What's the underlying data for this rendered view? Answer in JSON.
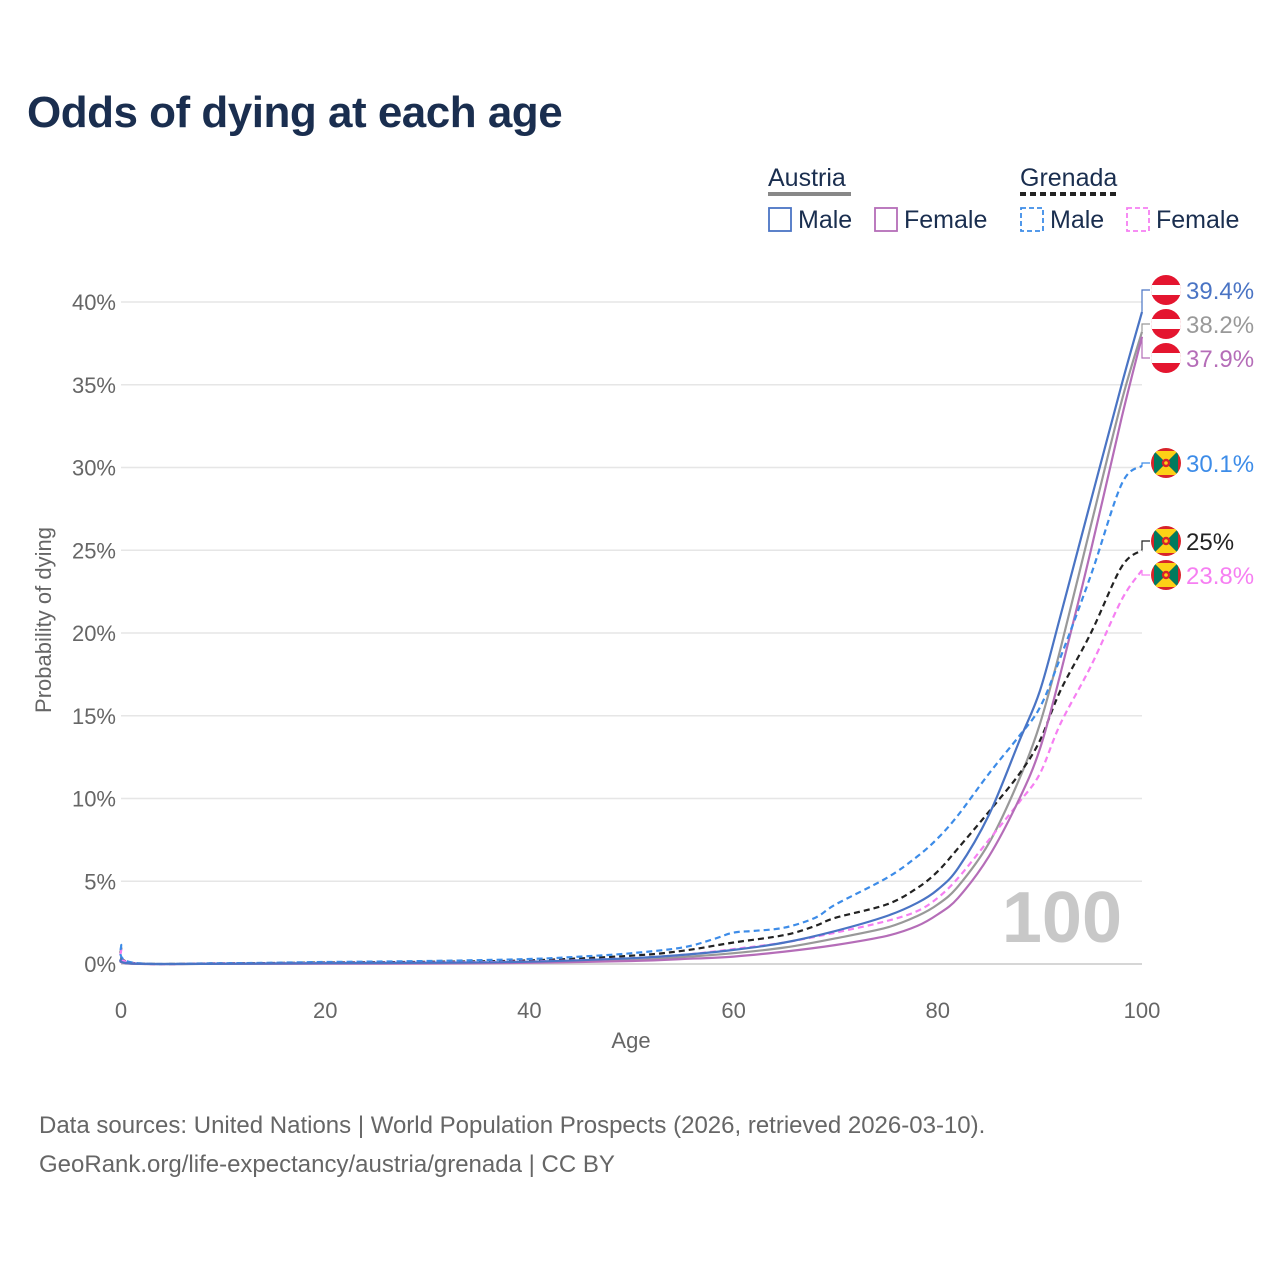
{
  "title": "Odds of dying at each age",
  "legend": {
    "groups": [
      {
        "country": "Austria",
        "items": [
          {
            "label": "Male",
            "color": "#4a74c4",
            "dashed": false
          },
          {
            "label": "Female",
            "color": "#b56db8",
            "dashed": false
          }
        ]
      },
      {
        "country": "Grenada",
        "items": [
          {
            "label": "Male",
            "color": "#3d8ce8",
            "dashed": true
          },
          {
            "label": "Female",
            "color": "#f67ff2",
            "dashed": true
          }
        ]
      }
    ]
  },
  "watermark": "100",
  "sources": {
    "line1": "Data sources: United Nations | World Population Prospects (2026, retrieved 2026-03-10).",
    "line2": "GeoRank.org/life-expectancy/austria/grenada | CC BY"
  },
  "chart_data": {
    "type": "line",
    "title": "Odds of dying at each age",
    "xlabel": "Age",
    "ylabel": "Probability of dying",
    "xlim": [
      0,
      100
    ],
    "ylim": [
      0,
      40
    ],
    "xticks": [
      0,
      20,
      40,
      60,
      80,
      100
    ],
    "yticks": [
      0,
      5,
      10,
      15,
      20,
      25,
      30,
      35,
      40
    ],
    "ytick_labels": [
      "0%",
      "5%",
      "10%",
      "15%",
      "20%",
      "25%",
      "30%",
      "35%",
      "40%"
    ],
    "grid": true,
    "series": [
      {
        "name": "Austria Male",
        "color": "#4a74c4",
        "dashed": false,
        "flag": "austria",
        "end_label": "39.4%",
        "points": [
          [
            0,
            0.35
          ],
          [
            1,
            0.03
          ],
          [
            10,
            0.01
          ],
          [
            20,
            0.05
          ],
          [
            30,
            0.07
          ],
          [
            40,
            0.14
          ],
          [
            50,
            0.35
          ],
          [
            55,
            0.55
          ],
          [
            60,
            0.85
          ],
          [
            65,
            1.3
          ],
          [
            70,
            2.0
          ],
          [
            75,
            2.9
          ],
          [
            78,
            3.7
          ],
          [
            80,
            4.5
          ],
          [
            82,
            5.8
          ],
          [
            85,
            9.0
          ],
          [
            88,
            13.5
          ],
          [
            90,
            16.5
          ],
          [
            92,
            21.0
          ],
          [
            95,
            28.0
          ],
          [
            98,
            35.0
          ],
          [
            100,
            39.4
          ]
        ]
      },
      {
        "name": "Austria Female",
        "color": "#b56db8",
        "dashed": false,
        "flag": "austria",
        "end_label": "37.9%",
        "points": [
          [
            0,
            0.3
          ],
          [
            1,
            0.02
          ],
          [
            10,
            0.01
          ],
          [
            20,
            0.02
          ],
          [
            30,
            0.03
          ],
          [
            40,
            0.07
          ],
          [
            50,
            0.18
          ],
          [
            55,
            0.3
          ],
          [
            60,
            0.45
          ],
          [
            65,
            0.75
          ],
          [
            70,
            1.15
          ],
          [
            75,
            1.7
          ],
          [
            78,
            2.3
          ],
          [
            80,
            3.0
          ],
          [
            82,
            4.0
          ],
          [
            85,
            6.5
          ],
          [
            88,
            10.0
          ],
          [
            90,
            13.0
          ],
          [
            92,
            17.5
          ],
          [
            95,
            25.0
          ],
          [
            98,
            33.0
          ],
          [
            100,
            37.9
          ]
        ]
      },
      {
        "name": "Austria Total",
        "color": "#999999",
        "dashed": false,
        "flag": "austria",
        "end_label": "38.2%",
        "points": [
          [
            0,
            0.32
          ],
          [
            1,
            0.025
          ],
          [
            10,
            0.01
          ],
          [
            20,
            0.035
          ],
          [
            30,
            0.05
          ],
          [
            40,
            0.1
          ],
          [
            50,
            0.26
          ],
          [
            55,
            0.42
          ],
          [
            60,
            0.65
          ],
          [
            65,
            1.0
          ],
          [
            70,
            1.55
          ],
          [
            75,
            2.2
          ],
          [
            78,
            2.9
          ],
          [
            80,
            3.6
          ],
          [
            82,
            4.7
          ],
          [
            85,
            7.3
          ],
          [
            88,
            11.2
          ],
          [
            90,
            14.5
          ],
          [
            92,
            19.0
          ],
          [
            95,
            26.5
          ],
          [
            98,
            34.0
          ],
          [
            100,
            38.2
          ]
        ]
      },
      {
        "name": "Grenada Male",
        "color": "#3d8ce8",
        "dashed": true,
        "flag": "grenada",
        "end_label": "30.1%",
        "points": [
          [
            0,
            1.2
          ],
          [
            1,
            0.1
          ],
          [
            10,
            0.05
          ],
          [
            20,
            0.12
          ],
          [
            30,
            0.18
          ],
          [
            40,
            0.3
          ],
          [
            45,
            0.45
          ],
          [
            50,
            0.65
          ],
          [
            55,
            1.0
          ],
          [
            58,
            1.5
          ],
          [
            60,
            1.9
          ],
          [
            62,
            2.0
          ],
          [
            65,
            2.2
          ],
          [
            68,
            2.8
          ],
          [
            70,
            3.6
          ],
          [
            75,
            5.2
          ],
          [
            78,
            6.5
          ],
          [
            80,
            7.6
          ],
          [
            82,
            9.0
          ],
          [
            85,
            11.5
          ],
          [
            88,
            13.8
          ],
          [
            90,
            15.5
          ],
          [
            92,
            18.5
          ],
          [
            95,
            23.5
          ],
          [
            98,
            29.0
          ],
          [
            100,
            30.1
          ]
        ]
      },
      {
        "name": "Grenada Total",
        "color": "#222222",
        "dashed": true,
        "flag": "grenada",
        "end_label": "25%",
        "points": [
          [
            0,
            1.0
          ],
          [
            1,
            0.08
          ],
          [
            10,
            0.04
          ],
          [
            20,
            0.09
          ],
          [
            30,
            0.13
          ],
          [
            40,
            0.22
          ],
          [
            50,
            0.5
          ],
          [
            55,
            0.8
          ],
          [
            60,
            1.3
          ],
          [
            65,
            1.75
          ],
          [
            68,
            2.3
          ],
          [
            70,
            2.8
          ],
          [
            75,
            3.6
          ],
          [
            78,
            4.6
          ],
          [
            80,
            5.6
          ],
          [
            82,
            7.0
          ],
          [
            85,
            9.2
          ],
          [
            88,
            11.5
          ],
          [
            90,
            13.5
          ],
          [
            92,
            16.5
          ],
          [
            95,
            20.0
          ],
          [
            98,
            24.0
          ],
          [
            100,
            25.0
          ]
        ]
      },
      {
        "name": "Grenada Female",
        "color": "#f67ff2",
        "dashed": true,
        "flag": "grenada",
        "end_label": "23.8%",
        "points": [
          [
            0,
            0.9
          ],
          [
            1,
            0.06
          ],
          [
            10,
            0.03
          ],
          [
            20,
            0.06
          ],
          [
            30,
            0.09
          ],
          [
            40,
            0.15
          ],
          [
            50,
            0.35
          ],
          [
            55,
            0.55
          ],
          [
            60,
            0.9
          ],
          [
            65,
            1.3
          ],
          [
            70,
            1.9
          ],
          [
            75,
            2.6
          ],
          [
            78,
            3.2
          ],
          [
            80,
            4.0
          ],
          [
            82,
            5.2
          ],
          [
            85,
            7.5
          ],
          [
            88,
            9.8
          ],
          [
            90,
            11.5
          ],
          [
            92,
            14.5
          ],
          [
            95,
            18.0
          ],
          [
            98,
            22.0
          ],
          [
            100,
            23.8
          ]
        ]
      }
    ],
    "end_labels": [
      {
        "series": "Austria Male",
        "text": "39.4%",
        "color": "#4a74c4",
        "flag": "austria"
      },
      {
        "series": "Austria Total",
        "text": "38.2%",
        "color": "#999999",
        "flag": "austria"
      },
      {
        "series": "Austria Female",
        "text": "37.9%",
        "color": "#b56db8",
        "flag": "austria"
      },
      {
        "series": "Grenada Male",
        "text": "30.1%",
        "color": "#3d8ce8",
        "flag": "grenada"
      },
      {
        "series": "Grenada Total",
        "text": "25%",
        "color": "#222222",
        "flag": "grenada"
      },
      {
        "series": "Grenada Female",
        "text": "23.8%",
        "color": "#f67ff2",
        "flag": "grenada"
      }
    ]
  }
}
